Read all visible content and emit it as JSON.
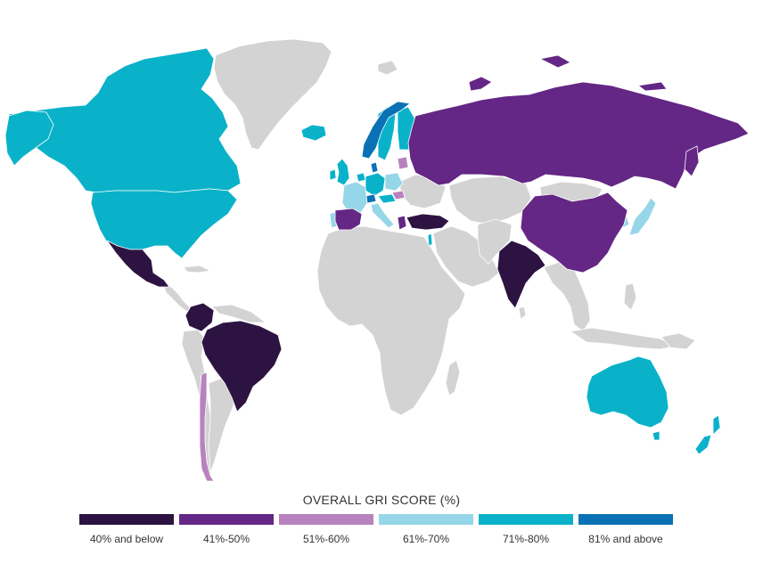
{
  "legend": {
    "title": "OVERALL GRI SCORE (%)",
    "items": [
      {
        "label": "40% and below",
        "color": "#2d1342"
      },
      {
        "label": "41%-50%",
        "color": "#642785"
      },
      {
        "label": "51%-60%",
        "color": "#b882be"
      },
      {
        "label": "61%-70%",
        "color": "#96d6e9"
      },
      {
        "label": "71%-80%",
        "color": "#09b2c9"
      },
      {
        "label": "81% and above",
        "color": "#0a72b4"
      }
    ]
  },
  "map": {
    "no_data_color": "#d3d3d3",
    "countries": [
      {
        "name": "Canada",
        "band": "71%-80%"
      },
      {
        "name": "United States",
        "band": "71%-80%"
      },
      {
        "name": "Mexico",
        "band": "40% and below"
      },
      {
        "name": "Colombia",
        "band": "40% and below"
      },
      {
        "name": "Brazil",
        "band": "40% and below"
      },
      {
        "name": "Chile",
        "band": "51%-60%"
      },
      {
        "name": "United Kingdom",
        "band": "71%-80%"
      },
      {
        "name": "Ireland",
        "band": "71%-80%"
      },
      {
        "name": "Iceland",
        "band": "71%-80%"
      },
      {
        "name": "Norway",
        "band": "81% and above"
      },
      {
        "name": "Sweden",
        "band": "71%-80%"
      },
      {
        "name": "Finland",
        "band": "71%-80%"
      },
      {
        "name": "Denmark",
        "band": "81% and above"
      },
      {
        "name": "Netherlands",
        "band": "71%-80%"
      },
      {
        "name": "France",
        "band": "61%-70%"
      },
      {
        "name": "Germany",
        "band": "71%-80%"
      },
      {
        "name": "Switzerland",
        "band": "81% and above"
      },
      {
        "name": "Austria",
        "band": "71%-80%"
      },
      {
        "name": "Poland",
        "band": "61%-70%"
      },
      {
        "name": "Hungary",
        "band": "51%-60%"
      },
      {
        "name": "Italy",
        "band": "61%-70%"
      },
      {
        "name": "Spain",
        "band": "41%-50%"
      },
      {
        "name": "Portugal",
        "band": "61%-70%"
      },
      {
        "name": "Greece",
        "band": "41%-50%"
      },
      {
        "name": "Turkey",
        "band": "40% and below"
      },
      {
        "name": "Israel",
        "band": "71%-80%"
      },
      {
        "name": "Russia",
        "band": "41%-50%"
      },
      {
        "name": "China",
        "band": "41%-50%"
      },
      {
        "name": "India",
        "band": "40% and below"
      },
      {
        "name": "South Korea",
        "band": "61%-70%"
      },
      {
        "name": "Japan",
        "band": "61%-70%"
      },
      {
        "name": "Australia",
        "band": "71%-80%"
      },
      {
        "name": "New Zealand",
        "band": "71%-80%"
      }
    ]
  }
}
